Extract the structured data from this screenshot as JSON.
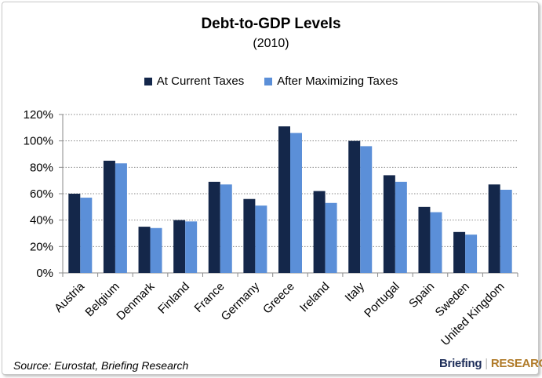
{
  "chart_data": {
    "type": "bar",
    "title": "Debt-to-GDP Levels",
    "subtitle": "(2010)",
    "categories": [
      "Austria",
      "Belgium",
      "Denmark",
      "Finland",
      "France",
      "Germany",
      "Greece",
      "Ireland",
      "Italy",
      "Portugal",
      "Spain",
      "Sweden",
      "United Kingdom"
    ],
    "series": [
      {
        "name": "At Current Taxes",
        "color": "#14274a",
        "values": [
          60,
          85,
          35,
          40,
          69,
          56,
          111,
          62,
          100,
          74,
          50,
          31,
          67
        ]
      },
      {
        "name": "After Maximizing Taxes",
        "color": "#5b8fd8",
        "values": [
          57,
          83,
          34,
          39,
          67,
          51,
          106,
          53,
          96,
          69,
          46,
          29,
          63
        ]
      }
    ],
    "ylim": [
      0,
      120
    ],
    "yticks": [
      "0%",
      "20%",
      "40%",
      "60%",
      "80%",
      "100%",
      "120%"
    ],
    "grid": true,
    "legend_position": "top-center"
  },
  "source": "Source: Eurostat, Briefing Research",
  "logo": {
    "left": "Briefing",
    "right": "RESEARCH"
  }
}
